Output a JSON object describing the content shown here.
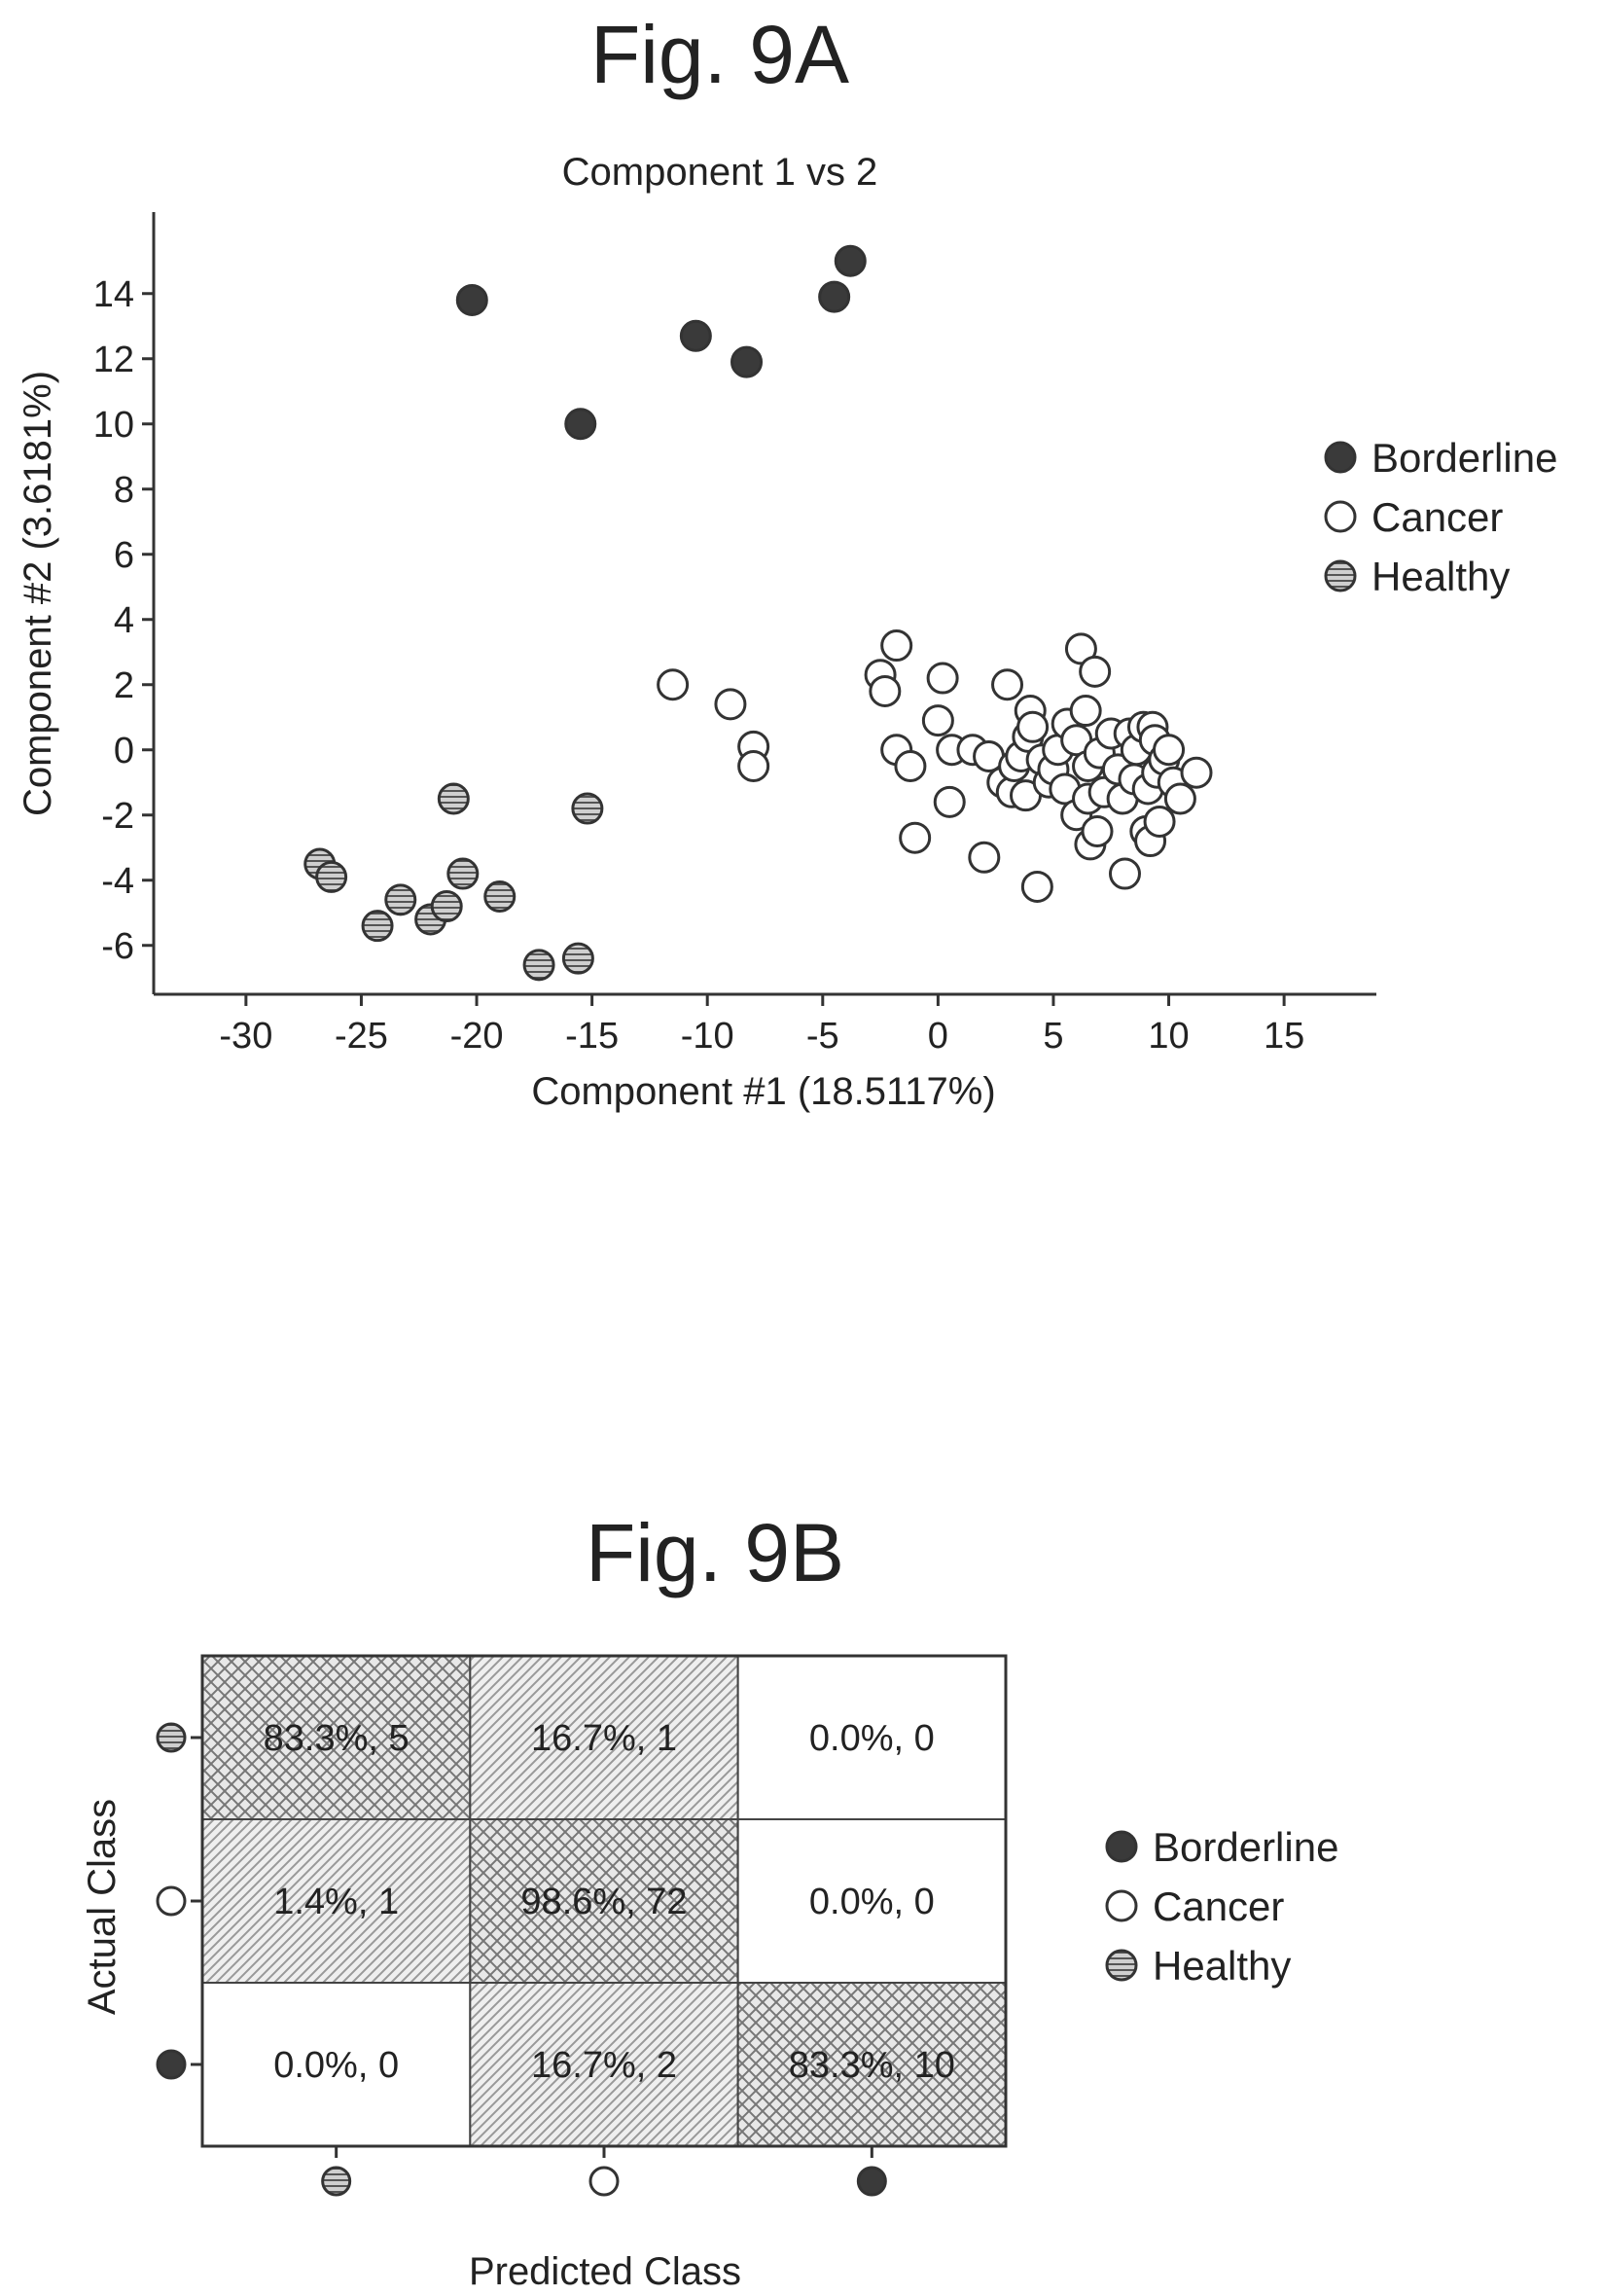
{
  "chart_data": [
    {
      "type": "scatter",
      "figure_label": "Fig. 9A",
      "title": "Component 1 vs 2",
      "xlabel": "Component #1 (18.5117%)",
      "ylabel": "Component #2 (3.6181%)",
      "xlim": [
        -34,
        19
      ],
      "ylim": [
        -7.5,
        16.5
      ],
      "xticks": [
        -30,
        -25,
        -20,
        -15,
        -10,
        -5,
        0,
        5,
        10,
        15
      ],
      "yticks": [
        -6,
        -4,
        -2,
        0,
        2,
        4,
        6,
        8,
        10,
        12,
        14
      ],
      "legend_position": "right",
      "series": [
        {
          "name": "Borderline",
          "marker": "filled",
          "color": "#3a3a3a",
          "points": [
            [
              -20.2,
              13.8
            ],
            [
              -15.5,
              10.0
            ],
            [
              -10.5,
              12.7
            ],
            [
              -8.3,
              11.9
            ],
            [
              -4.5,
              13.9
            ],
            [
              -3.8,
              15.0
            ]
          ]
        },
        {
          "name": "Cancer",
          "marker": "open",
          "color": "#ffffff",
          "points": [
            [
              -11.5,
              2.0
            ],
            [
              -9.0,
              1.4
            ],
            [
              -8.0,
              0.1
            ],
            [
              -8.0,
              -0.5
            ],
            [
              -2.5,
              2.3
            ],
            [
              -2.3,
              1.8
            ],
            [
              -1.8,
              3.2
            ],
            [
              -1.8,
              0.0
            ],
            [
              -1.2,
              -0.5
            ],
            [
              -1.0,
              -2.7
            ],
            [
              0.0,
              0.9
            ],
            [
              0.2,
              2.2
            ],
            [
              0.5,
              -1.6
            ],
            [
              0.6,
              0.0
            ],
            [
              1.5,
              0.0
            ],
            [
              2.0,
              -3.3
            ],
            [
              2.2,
              -0.2
            ],
            [
              2.8,
              -1.0
            ],
            [
              3.0,
              2.0
            ],
            [
              3.2,
              -1.3
            ],
            [
              3.3,
              -0.5
            ],
            [
              3.6,
              -0.2
            ],
            [
              3.8,
              -1.4
            ],
            [
              3.9,
              0.4
            ],
            [
              4.0,
              1.2
            ],
            [
              4.1,
              0.7
            ],
            [
              4.3,
              -4.2
            ],
            [
              4.5,
              -0.3
            ],
            [
              4.8,
              -1.0
            ],
            [
              5.0,
              -0.6
            ],
            [
              5.2,
              0.0
            ],
            [
              5.5,
              -1.2
            ],
            [
              5.6,
              0.8
            ],
            [
              6.0,
              0.3
            ],
            [
              6.0,
              -2.0
            ],
            [
              6.2,
              3.1
            ],
            [
              6.4,
              1.2
            ],
            [
              6.5,
              -0.5
            ],
            [
              6.5,
              -1.5
            ],
            [
              6.6,
              -2.9
            ],
            [
              6.8,
              2.4
            ],
            [
              6.9,
              -2.5
            ],
            [
              7.0,
              -0.1
            ],
            [
              7.2,
              -1.3
            ],
            [
              7.5,
              0.5
            ],
            [
              7.8,
              -0.6
            ],
            [
              8.0,
              -1.5
            ],
            [
              8.1,
              -3.8
            ],
            [
              8.3,
              0.5
            ],
            [
              8.5,
              -0.9
            ],
            [
              8.6,
              0.0
            ],
            [
              8.9,
              0.7
            ],
            [
              9.0,
              -2.5
            ],
            [
              9.1,
              -1.2
            ],
            [
              9.2,
              -2.8
            ],
            [
              9.3,
              0.7
            ],
            [
              9.4,
              0.3
            ],
            [
              9.5,
              -0.7
            ],
            [
              9.6,
              -2.2
            ],
            [
              9.8,
              -0.3
            ],
            [
              10.0,
              0.0
            ],
            [
              10.2,
              -1.0
            ],
            [
              10.5,
              -1.5
            ],
            [
              11.2,
              -0.7
            ]
          ]
        },
        {
          "name": "Healthy",
          "marker": "hatched",
          "color": "#9a9a9a",
          "points": [
            [
              -26.8,
              -3.5
            ],
            [
              -26.3,
              -3.9
            ],
            [
              -24.3,
              -5.4
            ],
            [
              -23.3,
              -4.6
            ],
            [
              -22.0,
              -5.2
            ],
            [
              -21.3,
              -4.8
            ],
            [
              -21.0,
              -1.5
            ],
            [
              -20.6,
              -3.8
            ],
            [
              -19.0,
              -4.5
            ],
            [
              -17.3,
              -6.6
            ],
            [
              -15.6,
              -6.4
            ],
            [
              -15.2,
              -1.8
            ]
          ]
        }
      ]
    },
    {
      "type": "heatmap",
      "figure_label": "Fig. 9B",
      "xlabel": "Predicted Class",
      "ylabel": "Actual Class",
      "classes": [
        "Healthy",
        "Cancer",
        "Borderline"
      ],
      "cells": [
        [
          "83.3%, 5",
          "16.7%, 1",
          "0.0%, 0"
        ],
        [
          "1.4%, 1",
          "98.6%, 72",
          "0.0%, 0"
        ],
        [
          "0.0%, 0",
          "16.7%, 2",
          "83.3%, 10"
        ]
      ],
      "percent": [
        [
          83.3,
          16.7,
          0.0
        ],
        [
          1.4,
          98.6,
          0.0
        ],
        [
          0.0,
          16.7,
          83.3
        ]
      ],
      "counts": [
        [
          5,
          1,
          0
        ],
        [
          1,
          72,
          0
        ],
        [
          0,
          2,
          10
        ]
      ],
      "legend_position": "right",
      "legend": [
        {
          "name": "Borderline",
          "marker": "filled"
        },
        {
          "name": "Cancer",
          "marker": "open"
        },
        {
          "name": "Healthy",
          "marker": "hatched"
        }
      ]
    }
  ]
}
